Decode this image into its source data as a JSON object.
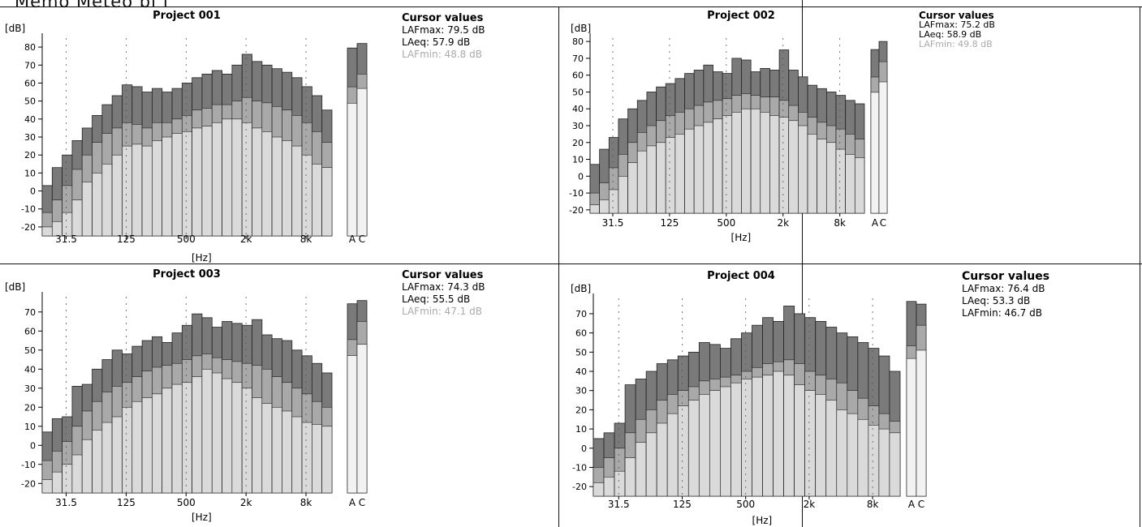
{
  "header_fragment": "Memo Meteo bi f",
  "chart_data": [
    {
      "type": "bar",
      "title": "Project 001",
      "ylabel": "[dB]",
      "xlabel": "[Hz]",
      "ylim": [
        -25,
        85
      ],
      "yticks": [
        -20,
        -10,
        0,
        10,
        20,
        30,
        40,
        50,
        60,
        70,
        80
      ],
      "xtick_labels": [
        "31.5",
        "125",
        "500",
        "2k",
        "8k"
      ],
      "total_labels": [
        "A",
        "C"
      ],
      "cursor": {
        "title": "Cursor values",
        "lafmax": "LAFmax: 79.5 dB",
        "laeq": "LAeq: 57.9 dB",
        "lafmin": "LAFmin: 48.8 dB"
      },
      "series": [
        {
          "name": "LAFmax",
          "values": [
            3,
            13,
            20,
            28,
            35,
            42,
            48,
            53,
            59,
            58,
            55,
            57,
            55,
            57,
            60,
            63,
            65,
            67,
            65,
            70,
            76,
            72,
            70,
            68,
            66,
            63,
            58,
            53,
            45
          ]
        },
        {
          "name": "LAeq",
          "values": [
            -12,
            -5,
            3,
            12,
            20,
            27,
            32,
            35,
            38,
            37,
            35,
            38,
            38,
            40,
            42,
            45,
            46,
            48,
            48,
            50,
            52,
            50,
            49,
            47,
            45,
            42,
            38,
            33,
            27
          ]
        },
        {
          "name": "LAFmin",
          "values": [
            -20,
            -17,
            -12,
            -5,
            5,
            10,
            15,
            20,
            25,
            26,
            25,
            28,
            30,
            32,
            33,
            35,
            36,
            38,
            40,
            40,
            38,
            35,
            33,
            30,
            28,
            25,
            20,
            15,
            13
          ]
        }
      ],
      "totals": {
        "max": [
          79.5,
          82
        ],
        "eq": [
          57.9,
          65
        ],
        "min": [
          48.8,
          57
        ]
      }
    },
    {
      "type": "bar",
      "title": "Project 002",
      "ylabel": "[dB]",
      "xlabel": "[Hz]",
      "ylim": [
        -22,
        82
      ],
      "yticks": [
        -20,
        -10,
        0,
        10,
        20,
        30,
        40,
        50,
        60,
        70,
        80
      ],
      "xtick_labels": [
        "31.5",
        "125",
        "500",
        "2k",
        "8k"
      ],
      "total_labels": [
        "A",
        "C"
      ],
      "cursor": {
        "title": "Cursor values",
        "lafmax": "LAFmax: 75.2 dB",
        "laeq": "LAeq: 58.9 dB",
        "lafmin": "LAFmin: 49.8 dB"
      },
      "series": [
        {
          "name": "LAFmax",
          "values": [
            7,
            16,
            23,
            34,
            40,
            45,
            50,
            53,
            55,
            58,
            61,
            63,
            66,
            62,
            61,
            70,
            69,
            62,
            64,
            63,
            75,
            63,
            59,
            54,
            52,
            50,
            48,
            45,
            43
          ]
        },
        {
          "name": "LAeq",
          "values": [
            -10,
            -4,
            5,
            13,
            20,
            26,
            30,
            33,
            36,
            38,
            40,
            42,
            44,
            45,
            46,
            48,
            49,
            48,
            47,
            47,
            45,
            42,
            38,
            35,
            32,
            30,
            28,
            25,
            22
          ]
        },
        {
          "name": "LAFmin",
          "values": [
            -17,
            -14,
            -8,
            0,
            8,
            15,
            18,
            20,
            23,
            25,
            28,
            30,
            32,
            34,
            36,
            38,
            40,
            40,
            38,
            36,
            35,
            33,
            30,
            25,
            22,
            20,
            16,
            13,
            11
          ]
        }
      ],
      "totals": {
        "max": [
          75.2,
          80
        ],
        "eq": [
          58.9,
          68
        ],
        "min": [
          49.8,
          56
        ]
      }
    },
    {
      "type": "bar",
      "title": "Project 003",
      "ylabel": "[dB]",
      "xlabel": "[Hz]",
      "ylim": [
        -25,
        78
      ],
      "yticks": [
        -20,
        -10,
        0,
        10,
        20,
        30,
        40,
        50,
        60,
        70
      ],
      "xtick_labels": [
        "31.5",
        "125",
        "500",
        "2k",
        "8k"
      ],
      "total_labels": [
        "A",
        "C"
      ],
      "cursor": {
        "title": "Cursor values",
        "lafmax": "LAFmax: 74.3 dB",
        "laeq": "LAeq: 55.5 dB",
        "lafmin": "LAFmin: 47.1 dB"
      },
      "series": [
        {
          "name": "LAFmax",
          "values": [
            7,
            14,
            15,
            31,
            32,
            40,
            45,
            50,
            48,
            52,
            55,
            57,
            54,
            59,
            63,
            69,
            67,
            62,
            65,
            64,
            63,
            66,
            58,
            56,
            55,
            50,
            47,
            43,
            38
          ]
        },
        {
          "name": "LAeq",
          "values": [
            -8,
            -3,
            2,
            10,
            18,
            23,
            28,
            31,
            33,
            36,
            39,
            41,
            42,
            43,
            45,
            47,
            48,
            46,
            45,
            44,
            43,
            42,
            40,
            36,
            33,
            30,
            27,
            23,
            20
          ]
        },
        {
          "name": "LAFmin",
          "values": [
            -18,
            -14,
            -10,
            -5,
            3,
            8,
            12,
            15,
            20,
            23,
            25,
            27,
            30,
            32,
            33,
            36,
            40,
            38,
            35,
            33,
            30,
            25,
            22,
            20,
            18,
            15,
            12,
            11,
            10
          ]
        }
      ],
      "totals": {
        "max": [
          74.3,
          76
        ],
        "eq": [
          55.5,
          65
        ],
        "min": [
          47.1,
          53
        ]
      }
    },
    {
      "type": "bar",
      "title": "Project 004",
      "ylabel": "[dB]",
      "xlabel": "[Hz]",
      "ylim": [
        -25,
        78
      ],
      "yticks": [
        -20,
        -10,
        0,
        10,
        20,
        30,
        40,
        50,
        60,
        70
      ],
      "xtick_labels": [
        "31.5",
        "125",
        "500",
        "2k",
        "8k"
      ],
      "total_labels": [
        "A",
        "C"
      ],
      "cursor": {
        "title": "Cursor values",
        "lafmax": "LAFmax: 76.4 dB",
        "laeq": "LAeq: 53.3 dB",
        "lafmin": "LAFmin: 46.7 dB"
      },
      "series": [
        {
          "name": "LAFmax",
          "values": [
            5,
            8,
            13,
            33,
            36,
            40,
            44,
            46,
            48,
            50,
            55,
            54,
            52,
            57,
            60,
            64,
            68,
            66,
            74,
            70,
            68,
            66,
            63,
            60,
            58,
            55,
            52,
            48,
            40
          ]
        },
        {
          "name": "LAeq",
          "values": [
            -10,
            -5,
            0,
            8,
            15,
            20,
            25,
            28,
            30,
            32,
            35,
            36,
            37,
            38,
            40,
            42,
            44,
            45,
            46,
            44,
            40,
            38,
            36,
            34,
            30,
            26,
            22,
            18,
            14
          ]
        },
        {
          "name": "LAFmin",
          "values": [
            -18,
            -15,
            -12,
            -5,
            3,
            8,
            13,
            18,
            22,
            25,
            28,
            30,
            32,
            34,
            36,
            37,
            38,
            40,
            38,
            33,
            30,
            28,
            25,
            20,
            18,
            15,
            12,
            10,
            8
          ]
        }
      ],
      "totals": {
        "max": [
          76.4,
          75
        ],
        "eq": [
          53.3,
          64
        ],
        "min": [
          46.7,
          51
        ]
      }
    }
  ]
}
